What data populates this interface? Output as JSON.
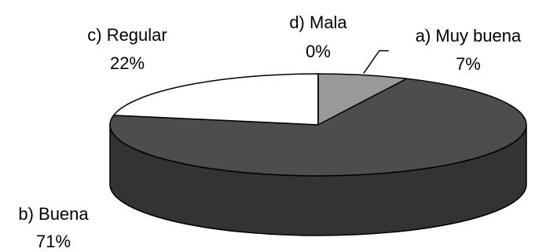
{
  "chart_data": {
    "type": "pie",
    "style": "3d",
    "slices": [
      {
        "label": "a) Muy buena",
        "value": 7,
        "pct_label": "7%",
        "color": "#999999"
      },
      {
        "label": "b) Buena",
        "value": 71,
        "pct_label": "71%",
        "color": "#4d4d4d"
      },
      {
        "label": "c) Regular",
        "value": 22,
        "pct_label": "22%",
        "color": "#ffffff"
      },
      {
        "label": "d) Mala",
        "value": 0,
        "pct_label": "0%",
        "color": "#ffffff"
      }
    ],
    "side_color": "#333333",
    "outline_color": "#000000"
  }
}
